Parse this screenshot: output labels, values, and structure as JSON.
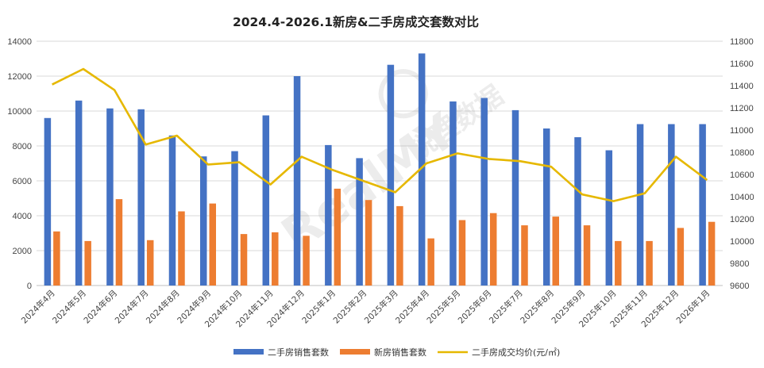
{
  "chart_data": {
    "type": "bar",
    "title": "2024.4-2026.1新房&二手房成交套数对比",
    "categories": [
      "2024年4月",
      "2024年5月",
      "2024年6月",
      "2024年7月",
      "2024年8月",
      "2024年9月",
      "2024年10月",
      "2024年11月",
      "2024年12月",
      "2025年1月",
      "2025年2月",
      "2025年3月",
      "2025年4月",
      "2025年5月",
      "2025年6月",
      "2025年7月",
      "2025年8月",
      "2025年9月",
      "2025年10月",
      "2025年11月",
      "2025年12月",
      "2026年1月"
    ],
    "series": [
      {
        "name": "二手房销售套数",
        "kind": "bar",
        "axis": "left",
        "color": "#4472C4",
        "values": [
          9600,
          10600,
          10150,
          10100,
          8600,
          7400,
          7700,
          9750,
          12000,
          8050,
          7300,
          12650,
          13300,
          10550,
          10750,
          10050,
          9000,
          8500,
          7750,
          9250,
          9250,
          9250
        ]
      },
      {
        "name": "新房销售套数",
        "kind": "bar",
        "axis": "left",
        "color": "#ED7D31",
        "values": [
          3100,
          2550,
          4950,
          2600,
          4250,
          4700,
          2950,
          3050,
          2850,
          5550,
          4900,
          4550,
          2700,
          3750,
          4150,
          3450,
          3950,
          3450,
          2550,
          2550,
          3300,
          3650
        ]
      },
      {
        "name": "二手房成交均价(元/㎡)",
        "kind": "line",
        "axis": "right",
        "color": "#E6B800",
        "values": [
          11410,
          11550,
          11360,
          10870,
          10950,
          10690,
          10710,
          10510,
          10760,
          10640,
          10540,
          10440,
          10700,
          10790,
          10740,
          10720,
          10670,
          10420,
          10360,
          10430,
          10760,
          10550
        ]
      }
    ],
    "left_axis": {
      "min": 0,
      "max": 14000,
      "step": 2000,
      "ticks": [
        "0",
        "2000",
        "4000",
        "6000",
        "8000",
        "10000",
        "12000",
        "14000"
      ]
    },
    "right_axis": {
      "min": 9600,
      "max": 11800,
      "step": 200,
      "ticks": [
        "9600",
        "9800",
        "10000",
        "10200",
        "10400",
        "10600",
        "10800",
        "11000",
        "11200",
        "11400",
        "11600",
        "11800"
      ]
    },
    "grid": true,
    "legend_position": "bottom-right"
  },
  "watermark": "RealMY 锐理数据"
}
